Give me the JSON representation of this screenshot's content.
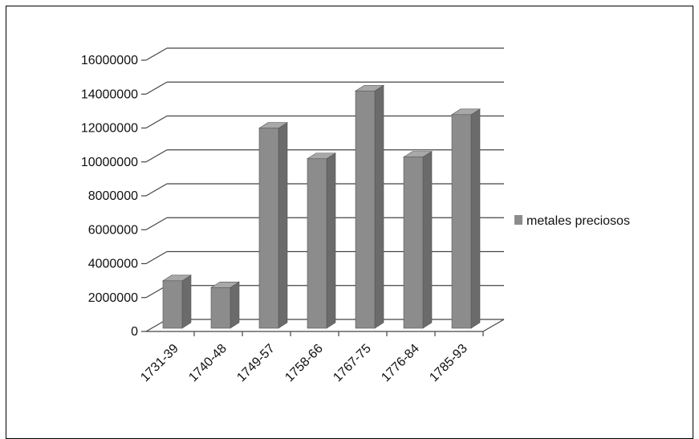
{
  "chart_data": {
    "type": "bar",
    "style": "3d-column",
    "title": "",
    "xlabel": "",
    "ylabel": "",
    "categories": [
      "1731-39",
      "1740-48",
      "1749-57",
      "1758-66",
      "1767-75",
      "1776-84",
      "1785-93"
    ],
    "series": [
      {
        "name": "metales preciosos",
        "values": [
          2800000,
          2400000,
          11800000,
          10000000,
          14000000,
          10100000,
          12600000
        ]
      }
    ],
    "ylim": [
      0,
      16000000
    ],
    "yticks": [
      "0",
      "2000000",
      "4000000",
      "6000000",
      "8000000",
      "10000000",
      "12000000",
      "14000000",
      "16000000"
    ],
    "grid": true,
    "legend_position": "right",
    "colors": {
      "bar_front": "#8c8c8c",
      "bar_side": "#6b6b6b",
      "bar_top": "#a8a8a8",
      "grid": "#444444"
    }
  }
}
